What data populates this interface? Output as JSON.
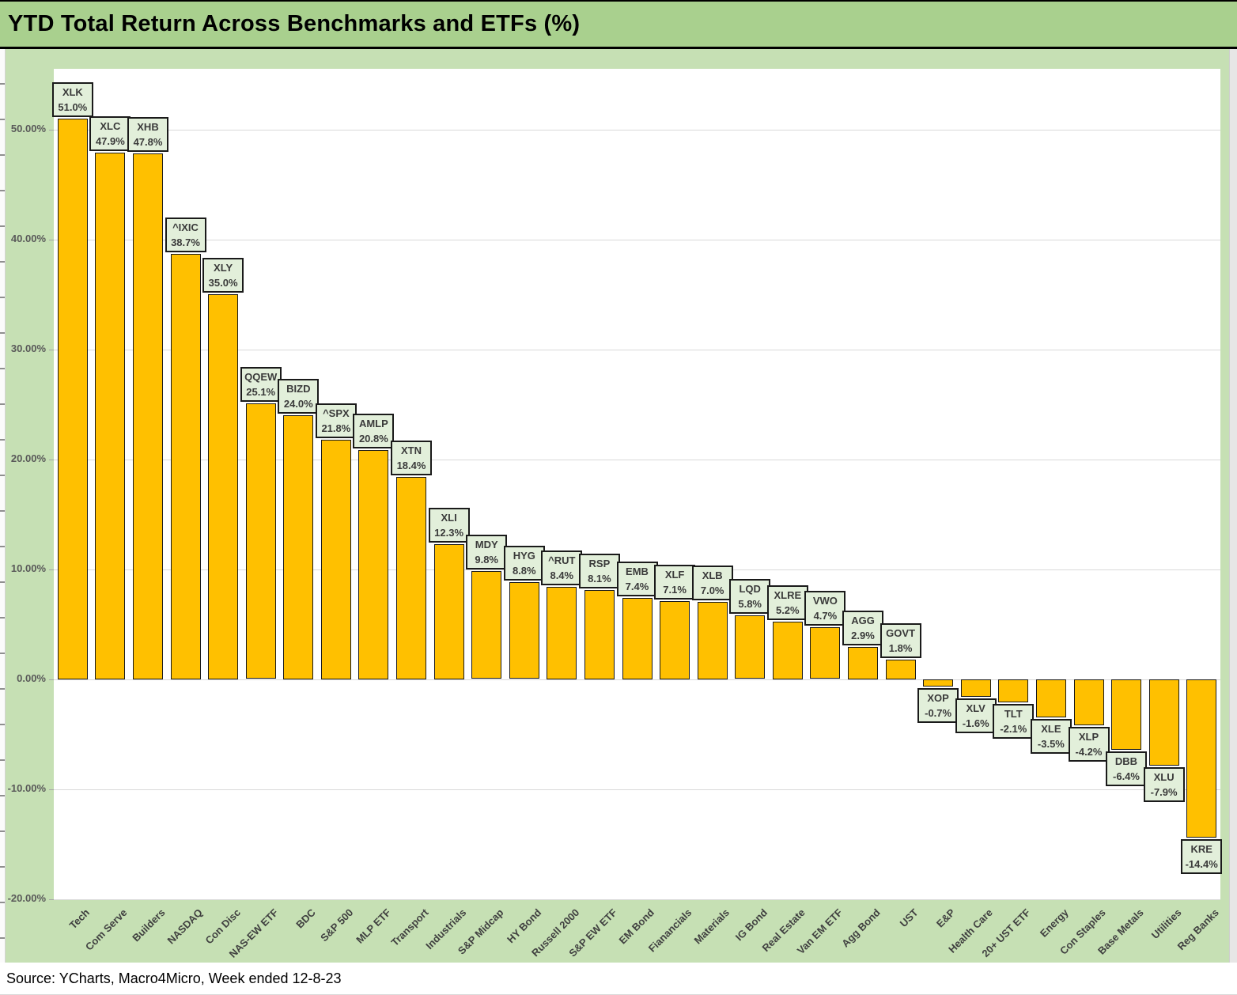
{
  "header": {
    "title": "YTD Total Return Across Benchmarks and ETFs (%)"
  },
  "footer": {
    "source": "Source: YCharts, Macro4Micro, Week ended 12-8-23"
  },
  "colors": {
    "title_bg": "#a9d08e",
    "margin_bg": "#c6e0b4",
    "bar": "#ffc000",
    "label_box_bg": "#e2efda",
    "gridline": "#d9d9d9",
    "axis_text": "#595959",
    "label_text": "#3a3a3a"
  },
  "chart_data": {
    "type": "bar",
    "title": "YTD Total Return Across Benchmarks and ETFs (%)",
    "xlabel": "",
    "ylabel": "",
    "grid": true,
    "legend": "none",
    "ylim": [
      -20.1,
      55.5
    ],
    "categories": [
      "Tech",
      "Com Serve",
      "Builders",
      "NASDAQ",
      "Con Disc",
      "NAS-EW ETF",
      "BDC",
      "S&P 500",
      "MLP ETF",
      "Transport",
      "Industrials",
      "S&P Midcap",
      "HY Bond",
      "Russell 2000",
      "S&P EW ETF",
      "EM Bond",
      "Fianancials",
      "Materials",
      "IG Bond",
      "Real Estate",
      "Van EM ETF",
      "Agg Bond",
      "UST",
      "E&P",
      "Health Care",
      "20+ UST ETF",
      "Energy",
      "Con Staples",
      "Base Metals",
      "Utilities",
      "Reg Banks"
    ],
    "tickers": [
      "XLK",
      "XLC",
      "XHB",
      "^IXIC",
      "XLY",
      "QQEW",
      "BIZD",
      "^SPX",
      "AMLP",
      "XTN",
      "XLI",
      "MDY",
      "HYG",
      "^RUT",
      "RSP",
      "EMB",
      "XLF",
      "XLB",
      "LQD",
      "XLRE",
      "VWO",
      "AGG",
      "GOVT",
      "XOP",
      "XLV",
      "TLT",
      "XLE",
      "XLP",
      "DBB",
      "XLU",
      "KRE"
    ],
    "values": [
      51.0,
      47.9,
      47.8,
      38.7,
      35.0,
      25.1,
      24.0,
      21.8,
      20.8,
      18.4,
      12.3,
      9.8,
      8.8,
      8.4,
      8.1,
      7.4,
      7.1,
      7.0,
      5.8,
      5.2,
      4.7,
      2.9,
      1.8,
      -0.7,
      -1.6,
      -2.1,
      -3.5,
      -4.2,
      -6.4,
      -7.9,
      -14.4
    ],
    "value_labels": [
      "51.0%",
      "47.9%",
      "47.8%",
      "38.7%",
      "35.0%",
      "25.1%",
      "24.0%",
      "21.8%",
      "20.8%",
      "18.4%",
      "12.3%",
      "9.8%",
      "8.8%",
      "8.4%",
      "8.1%",
      "7.4%",
      "7.1%",
      "7.0%",
      "5.8%",
      "5.2%",
      "4.7%",
      "2.9%",
      "1.8%",
      "-0.7%",
      "-1.6%",
      "-2.1%",
      "-3.5%",
      "-4.2%",
      "-6.4%",
      "-7.9%",
      "-14.4%"
    ],
    "y_axis": {
      "tick_values": [
        50,
        40,
        30,
        20,
        10,
        0,
        -10,
        -20
      ],
      "tick_labels": [
        "50.00%",
        "40.00%",
        "30.00%",
        "20.00%",
        "10.00%",
        "0.00%",
        "-10.00%",
        "-20.00%"
      ]
    }
  }
}
